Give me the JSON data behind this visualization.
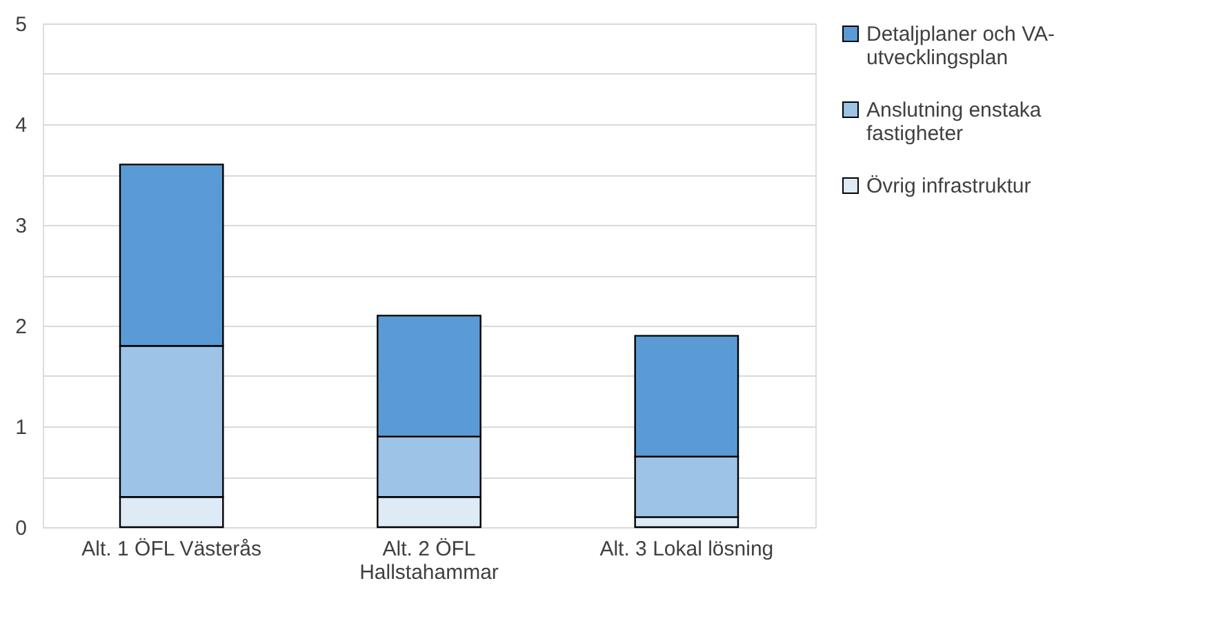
{
  "chart_data": {
    "type": "bar",
    "stacked": true,
    "categories": [
      "Alt. 1 ÖFL Västerås",
      "Alt. 2 ÖFL Hallstahammar",
      "Alt. 3 Lokal lösning"
    ],
    "series": [
      {
        "name": "Övrig infrastruktur",
        "color": "#deebf7",
        "values": [
          0.3,
          0.3,
          0.1
        ]
      },
      {
        "name": "Anslutning enstaka fastigheter",
        "color": "#9dc3e6",
        "values": [
          1.5,
          0.6,
          0.6
        ]
      },
      {
        "name": "Detaljplaner och VA-utvecklingsplan",
        "color": "#5b9bd5",
        "values": [
          1.8,
          1.2,
          1.2
        ]
      }
    ],
    "ylim": [
      0,
      5
    ],
    "yticks": [
      0,
      {
        "value": 0.5,
        "label": null
      },
      1,
      {
        "value": 1.5,
        "label": null
      },
      2,
      {
        "value": 2.5,
        "label": null
      },
      3,
      {
        "value": 3.5,
        "label": null
      },
      4,
      {
        "value": 4.5,
        "label": null
      },
      5
    ],
    "grid": "y",
    "legend": "right"
  }
}
